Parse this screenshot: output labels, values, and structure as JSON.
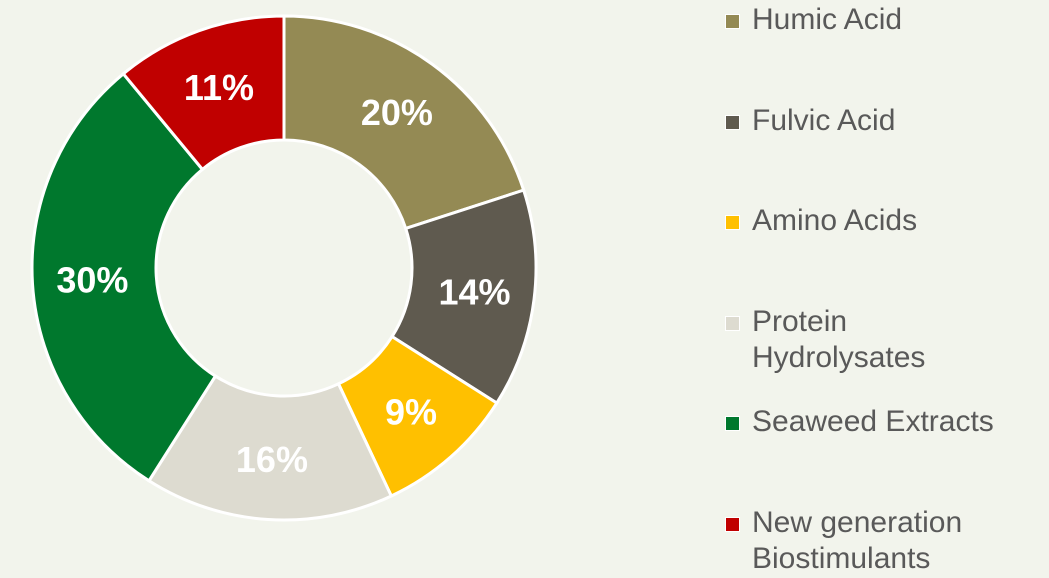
{
  "chart_data": {
    "type": "donut",
    "categories": [
      "Humic Acid",
      "Fulvic Acid",
      "Amino Acids",
      "Protein Hydrolysates",
      "Seaweed Extracts",
      "New generation Biostimulants"
    ],
    "values": [
      20,
      14,
      9,
      16,
      30,
      11
    ],
    "value_labels": [
      "20%",
      "14%",
      "9%",
      "16%",
      "30%",
      "11%"
    ],
    "colors": [
      "#948a54",
      "#5f5a4f",
      "#ffc000",
      "#dddbd0",
      "#00782d",
      "#c00000"
    ],
    "legend": "right"
  }
}
